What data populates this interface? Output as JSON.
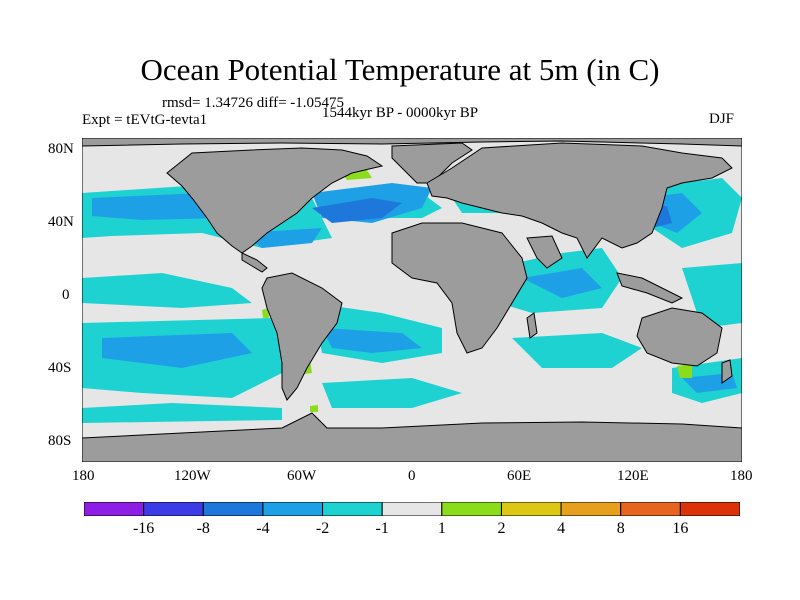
{
  "title": "Ocean Potential Temperature at 5m (in C)",
  "stats": "rmsd= 1.34726  diff= -1.05475",
  "experiment": "Expt = tEVtG-tevta1",
  "period": "1544kyr BP - 0000kyr BP",
  "season": "DJF",
  "x_ticks": [
    "180",
    "120W",
    "60W",
    "0",
    "60E",
    "120E",
    "180"
  ],
  "y_ticks": [
    "80N",
    "40N",
    "0",
    "40S",
    "80S"
  ],
  "legend": {
    "labels": [
      "-16",
      "-8",
      "-4",
      "-2",
      "-1",
      "1",
      "2",
      "4",
      "8",
      "16"
    ],
    "colors": [
      "#8c1ee6",
      "#3c3ce6",
      "#1e78dc",
      "#1ea0e6",
      "#1ed2d2",
      "#e6e6e6",
      "#8cdc1e",
      "#dcc814",
      "#e6a01e",
      "#e6641e",
      "#dc320a"
    ]
  },
  "colors": {
    "land": "#9c9c9c",
    "no_change": "#e6e6e6",
    "cool_1_2": "#1ed2d2",
    "cool_2_4": "#1ea0e6",
    "cool_4_8": "#1e78dc",
    "warm_1_2": "#8cdc1e"
  }
}
